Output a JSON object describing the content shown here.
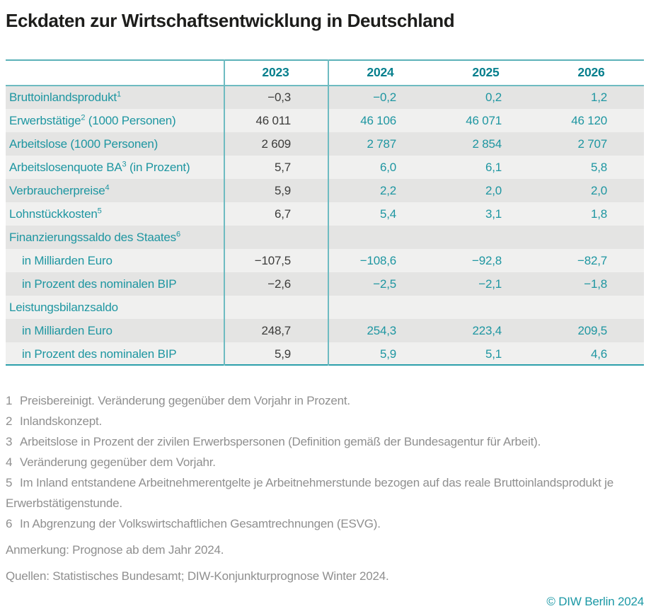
{
  "title": "Eckdaten zur Wirtschaftsentwicklung in Deutschland",
  "colors": {
    "accent_teal": "#1e96a1",
    "header_teal": "#067f8d",
    "line_teal": "#6ebbc1",
    "row_dark": "#e4e4e3",
    "row_light": "#f0f0ef",
    "value_black": "#3c3c3b",
    "footnote_gray": "#8f8f8f"
  },
  "table": {
    "col_headers": [
      "2023",
      "2024",
      "2025",
      "2026"
    ],
    "rows": [
      {
        "label": "Bruttoinlandsprodukt",
        "sup": "1",
        "suffix": "",
        "indent": false,
        "values": [
          "−0,3",
          "−0,2",
          "0,2",
          "1,2"
        ]
      },
      {
        "label": "Erwerbstätige",
        "sup": "2",
        "suffix": " (1000 Personen)",
        "indent": false,
        "values": [
          "46 011",
          "46 106",
          "46 071",
          "46 120"
        ]
      },
      {
        "label": "Arbeitslose (1000 Personen)",
        "sup": "",
        "suffix": "",
        "indent": false,
        "values": [
          "2 609",
          "2 787",
          "2 854",
          "2 707"
        ]
      },
      {
        "label": "Arbeitslosenquote BA",
        "sup": "3",
        "suffix": " (in Prozent)",
        "indent": false,
        "values": [
          "5,7",
          "6,0",
          "6,1",
          "5,8"
        ]
      },
      {
        "label": "Verbraucherpreise",
        "sup": "4",
        "suffix": "",
        "indent": false,
        "values": [
          "5,9",
          "2,2",
          "2,0",
          "2,0"
        ]
      },
      {
        "label": "Lohnstückkosten",
        "sup": "5",
        "suffix": "",
        "indent": false,
        "values": [
          "6,7",
          "5,4",
          "3,1",
          "1,8"
        ]
      },
      {
        "label": "Finanzierungssaldo des Staates",
        "sup": "6",
        "suffix": "",
        "indent": false,
        "values": [
          "",
          "",
          "",
          ""
        ]
      },
      {
        "label": "in Milliarden Euro",
        "sup": "",
        "suffix": "",
        "indent": true,
        "values": [
          "−107,5",
          "−108,6",
          "−92,8",
          "−82,7"
        ]
      },
      {
        "label": "in Prozent des nominalen BIP",
        "sup": "",
        "suffix": "",
        "indent": true,
        "values": [
          "−2,6",
          "−2,5",
          "−2,1",
          "−1,8"
        ]
      },
      {
        "label": "Leistungsbilanzsaldo",
        "sup": "",
        "suffix": "",
        "indent": false,
        "values": [
          "",
          "",
          "",
          ""
        ]
      },
      {
        "label": "in Milliarden Euro",
        "sup": "",
        "suffix": "",
        "indent": true,
        "values": [
          "248,7",
          "254,3",
          "223,4",
          "209,5"
        ]
      },
      {
        "label": "in Prozent des nominalen BIP",
        "sup": "",
        "suffix": "",
        "indent": true,
        "values": [
          "5,9",
          "5,9",
          "5,1",
          "4,6"
        ]
      }
    ]
  },
  "footnotes": [
    {
      "marker": "1",
      "text": "Preisbereinigt. Veränderung gegenüber dem Vorjahr in Prozent."
    },
    {
      "marker": "2",
      "text": "Inlandskonzept."
    },
    {
      "marker": "3",
      "text": "Arbeitslose in Prozent der zivilen Erwerbspersonen (Definition gemäß der Bundesagentur für Arbeit)."
    },
    {
      "marker": "4",
      "text": "Veränderung gegenüber dem Vorjahr."
    },
    {
      "marker": "5",
      "text": "Im Inland entstandene Arbeitnehmerentgelte je Arbeitnehmerstunde bezogen auf das reale Bruttoinlandsprodukt je Erwerbstätigenstunde."
    },
    {
      "marker": "6",
      "text": "In Abgrenzung der Volkswirtschaftlichen Gesamtrechnungen (ESVG)."
    }
  ],
  "note": "Anmerkung: Prognose ab dem Jahr 2024.",
  "sources": "Quellen: Statistisches Bundesamt; DIW-Konjunkturprognose Winter 2024.",
  "copyright": "© DIW Berlin 2024",
  "chart_data": {
    "type": "table",
    "title": "Eckdaten zur Wirtschaftsentwicklung in Deutschland",
    "columns": [
      2023,
      2024,
      2025,
      2026
    ],
    "forecast_from": 2024,
    "rows": [
      {
        "label": "Bruttoinlandsprodukt",
        "unit": "Veränderung gegenüber Vorjahr in Prozent, preisbereinigt",
        "values": [
          -0.3,
          -0.2,
          0.2,
          1.2
        ]
      },
      {
        "label": "Erwerbstätige (1000 Personen)",
        "values": [
          46011,
          46106,
          46071,
          46120
        ]
      },
      {
        "label": "Arbeitslose (1000 Personen)",
        "values": [
          2609,
          2787,
          2854,
          2707
        ]
      },
      {
        "label": "Arbeitslosenquote BA (in Prozent)",
        "values": [
          5.7,
          6.0,
          6.1,
          5.8
        ]
      },
      {
        "label": "Verbraucherpreise",
        "unit": "Veränderung gegenüber Vorjahr",
        "values": [
          5.9,
          2.2,
          2.0,
          2.0
        ]
      },
      {
        "label": "Lohnstückkosten",
        "values": [
          6.7,
          5.4,
          3.1,
          1.8
        ]
      },
      {
        "label": "Finanzierungssaldo des Staates",
        "values": [
          null,
          null,
          null,
          null
        ]
      },
      {
        "label": "Finanzierungssaldo des Staates – in Milliarden Euro",
        "values": [
          -107.5,
          -108.6,
          -92.8,
          -82.7
        ]
      },
      {
        "label": "Finanzierungssaldo des Staates – in Prozent des nominalen BIP",
        "values": [
          -2.6,
          -2.5,
          -2.1,
          -1.8
        ]
      },
      {
        "label": "Leistungsbilanzsaldo",
        "values": [
          null,
          null,
          null,
          null
        ]
      },
      {
        "label": "Leistungsbilanzsaldo – in Milliarden Euro",
        "values": [
          248.7,
          254.3,
          223.4,
          209.5
        ]
      },
      {
        "label": "Leistungsbilanzsaldo – in Prozent des nominalen BIP",
        "values": [
          5.9,
          5.9,
          5.1,
          4.6
        ]
      }
    ]
  }
}
